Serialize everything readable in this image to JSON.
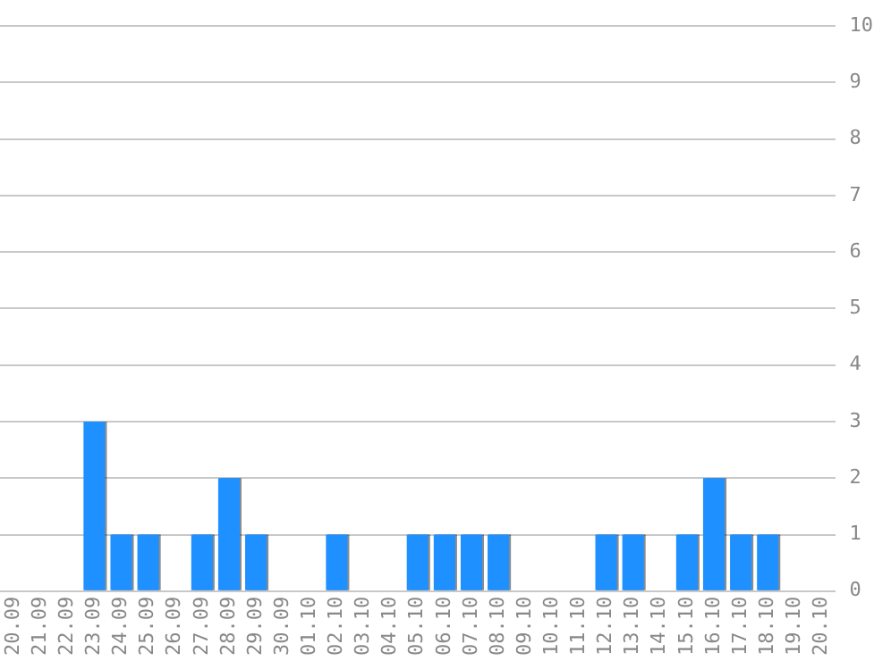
{
  "chart_data": {
    "type": "bar",
    "categories": [
      "20.09",
      "21.09",
      "22.09",
      "23.09",
      "24.09",
      "25.09",
      "26.09",
      "27.09",
      "28.09",
      "29.09",
      "30.09",
      "01.10",
      "02.10",
      "03.10",
      "04.10",
      "05.10",
      "06.10",
      "07.10",
      "08.10",
      "09.10",
      "10.10",
      "11.10",
      "12.10",
      "13.10",
      "14.10",
      "15.10",
      "16.10",
      "17.10",
      "18.10",
      "19.10",
      "20.10"
    ],
    "values": [
      0,
      0,
      0,
      3,
      1,
      1,
      0,
      1,
      2,
      1,
      0,
      0,
      1,
      0,
      0,
      1,
      1,
      1,
      1,
      0,
      0,
      0,
      1,
      1,
      0,
      1,
      2,
      1,
      1,
      0,
      0
    ],
    "color": "#1e90ff",
    "ylim": [
      0,
      10
    ],
    "yticks": [
      0,
      1,
      2,
      3,
      4,
      5,
      6,
      7,
      8,
      9,
      10
    ],
    "grid": "y",
    "legend": false
  }
}
